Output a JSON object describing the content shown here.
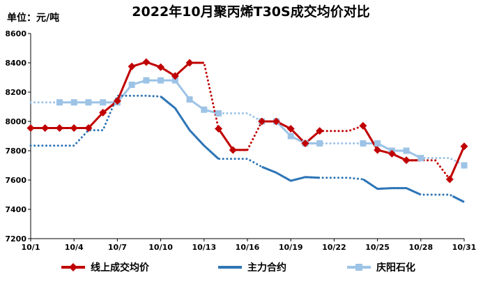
{
  "chart_data": {
    "type": "line",
    "title": "2022年10月聚丙烯T30S成交均价对比",
    "unit_label": "单位：元/吨",
    "ylim": [
      7200,
      8600
    ],
    "yticks": [
      7200,
      7400,
      7600,
      7800,
      8000,
      8200,
      8400,
      8600
    ],
    "xlim": [
      1,
      31
    ],
    "xticks": [
      {
        "x": 1,
        "label": "10/1"
      },
      {
        "x": 4,
        "label": "10/4"
      },
      {
        "x": 7,
        "label": "10/7"
      },
      {
        "x": 10,
        "label": "10/10"
      },
      {
        "x": 13,
        "label": "10/13"
      },
      {
        "x": 16,
        "label": "10/16"
      },
      {
        "x": 19,
        "label": "10/19"
      },
      {
        "x": 22,
        "label": "10/22"
      },
      {
        "x": 25,
        "label": "10/25"
      },
      {
        "x": 28,
        "label": "10/28"
      },
      {
        "x": 31,
        "label": "10/31"
      }
    ],
    "grid": false,
    "legend_position": "bottom",
    "series": [
      {
        "name": "线上成交均价",
        "color": "#C00000",
        "marker": "diamond",
        "points": [
          {
            "x": 1,
            "y": 7955
          },
          {
            "x": 2,
            "y": 7955
          },
          {
            "x": 3,
            "y": 7955
          },
          {
            "x": 4,
            "y": 7955
          },
          {
            "x": 5,
            "y": 7955
          },
          {
            "x": 6,
            "y": 8060
          },
          {
            "x": 7,
            "y": 8140
          },
          {
            "x": 8,
            "y": 8375
          },
          {
            "x": 9,
            "y": 8405
          },
          {
            "x": 10,
            "y": 8370
          },
          {
            "x": 11,
            "y": 8310
          },
          {
            "x": 12,
            "y": 8400
          },
          {
            "x": 13,
            "y": 8400
          },
          {
            "x": 14,
            "y": 7950
          },
          {
            "x": 15,
            "y": 7805
          },
          {
            "x": 16,
            "y": 7805
          },
          {
            "x": 17,
            "y": 8000
          },
          {
            "x": 18,
            "y": 8000
          },
          {
            "x": 19,
            "y": 7950
          },
          {
            "x": 20,
            "y": 7850
          },
          {
            "x": 21,
            "y": 7935
          },
          {
            "x": 22,
            "y": 7935
          },
          {
            "x": 23,
            "y": 7935
          },
          {
            "x": 24,
            "y": 7970
          },
          {
            "x": 25,
            "y": 7805
          },
          {
            "x": 26,
            "y": 7780
          },
          {
            "x": 27,
            "y": 7735
          },
          {
            "x": 28,
            "y": 7735
          },
          {
            "x": 29,
            "y": 7735
          },
          {
            "x": 30,
            "y": 7605
          },
          {
            "x": 31,
            "y": 7830
          }
        ],
        "solid_segments": [
          [
            1,
            13
          ],
          [
            14,
            16
          ],
          [
            17,
            21
          ],
          [
            24,
            28
          ],
          [
            30,
            31
          ]
        ],
        "markers": [
          1,
          2,
          3,
          4,
          5,
          6,
          7,
          8,
          9,
          10,
          11,
          12,
          14,
          15,
          17,
          18,
          19,
          20,
          21,
          24,
          25,
          26,
          27,
          30,
          31
        ]
      },
      {
        "name": "主力合约",
        "color": "#2E75B6",
        "marker": "none",
        "points": [
          {
            "x": 1,
            "y": 7835
          },
          {
            "x": 2,
            "y": 7835
          },
          {
            "x": 3,
            "y": 7835
          },
          {
            "x": 4,
            "y": 7835
          },
          {
            "x": 5,
            "y": 7940
          },
          {
            "x": 6,
            "y": 7940
          },
          {
            "x": 7,
            "y": 8175
          },
          {
            "x": 8,
            "y": 8175
          },
          {
            "x": 9,
            "y": 8175
          },
          {
            "x": 10,
            "y": 8170
          },
          {
            "x": 11,
            "y": 8090
          },
          {
            "x": 12,
            "y": 7940
          },
          {
            "x": 13,
            "y": 7835
          },
          {
            "x": 14,
            "y": 7745
          },
          {
            "x": 15,
            "y": 7745
          },
          {
            "x": 16,
            "y": 7745
          },
          {
            "x": 17,
            "y": 7690
          },
          {
            "x": 18,
            "y": 7650
          },
          {
            "x": 19,
            "y": 7595
          },
          {
            "x": 20,
            "y": 7620
          },
          {
            "x": 21,
            "y": 7615
          },
          {
            "x": 22,
            "y": 7615
          },
          {
            "x": 23,
            "y": 7615
          },
          {
            "x": 24,
            "y": 7605
          },
          {
            "x": 25,
            "y": 7540
          },
          {
            "x": 26,
            "y": 7545
          },
          {
            "x": 27,
            "y": 7545
          },
          {
            "x": 28,
            "y": 7500
          },
          {
            "x": 29,
            "y": 7500
          },
          {
            "x": 30,
            "y": 7500
          },
          {
            "x": 31,
            "y": 7450
          }
        ],
        "solid_segments": [
          [
            10,
            14
          ],
          [
            17,
            21
          ],
          [
            24,
            28
          ],
          [
            30.2,
            31
          ]
        ],
        "markers": []
      },
      {
        "name": "庆阳石化",
        "color": "#9DC3E6",
        "marker": "square",
        "points": [
          {
            "x": 1,
            "y": 8130
          },
          {
            "x": 2,
            "y": 8130
          },
          {
            "x": 3,
            "y": 8130
          },
          {
            "x": 4,
            "y": 8130
          },
          {
            "x": 5,
            "y": 8130
          },
          {
            "x": 6,
            "y": 8130
          },
          {
            "x": 7,
            "y": 8130
          },
          {
            "x": 8,
            "y": 8250
          },
          {
            "x": 9,
            "y": 8280
          },
          {
            "x": 10,
            "y": 8280
          },
          {
            "x": 11,
            "y": 8280
          },
          {
            "x": 12,
            "y": 8150
          },
          {
            "x": 13,
            "y": 8080
          },
          {
            "x": 14,
            "y": 8055
          },
          {
            "x": 15,
            "y": 8055
          },
          {
            "x": 16,
            "y": 8055
          },
          {
            "x": 17,
            "y": 8000
          },
          {
            "x": 18,
            "y": 8000
          },
          {
            "x": 19,
            "y": 7900
          },
          {
            "x": 20,
            "y": 7850
          },
          {
            "x": 21,
            "y": 7850
          },
          {
            "x": 22,
            "y": 7850
          },
          {
            "x": 23,
            "y": 7850
          },
          {
            "x": 24,
            "y": 7850
          },
          {
            "x": 25,
            "y": 7850
          },
          {
            "x": 26,
            "y": 7800
          },
          {
            "x": 27,
            "y": 7800
          },
          {
            "x": 28,
            "y": 7750
          },
          {
            "x": 29,
            "y": 7750
          },
          {
            "x": 30,
            "y": 7750
          },
          {
            "x": 31,
            "y": 7700
          }
        ],
        "solid_segments": [
          [
            3,
            7
          ],
          [
            7,
            14
          ],
          [
            17,
            21
          ],
          [
            24,
            28
          ]
        ],
        "markers": [
          3,
          4,
          5,
          6,
          7,
          8,
          9,
          10,
          11,
          12,
          13,
          14,
          17,
          18,
          19,
          20,
          21,
          24,
          25,
          26,
          27,
          28,
          31
        ]
      }
    ]
  }
}
